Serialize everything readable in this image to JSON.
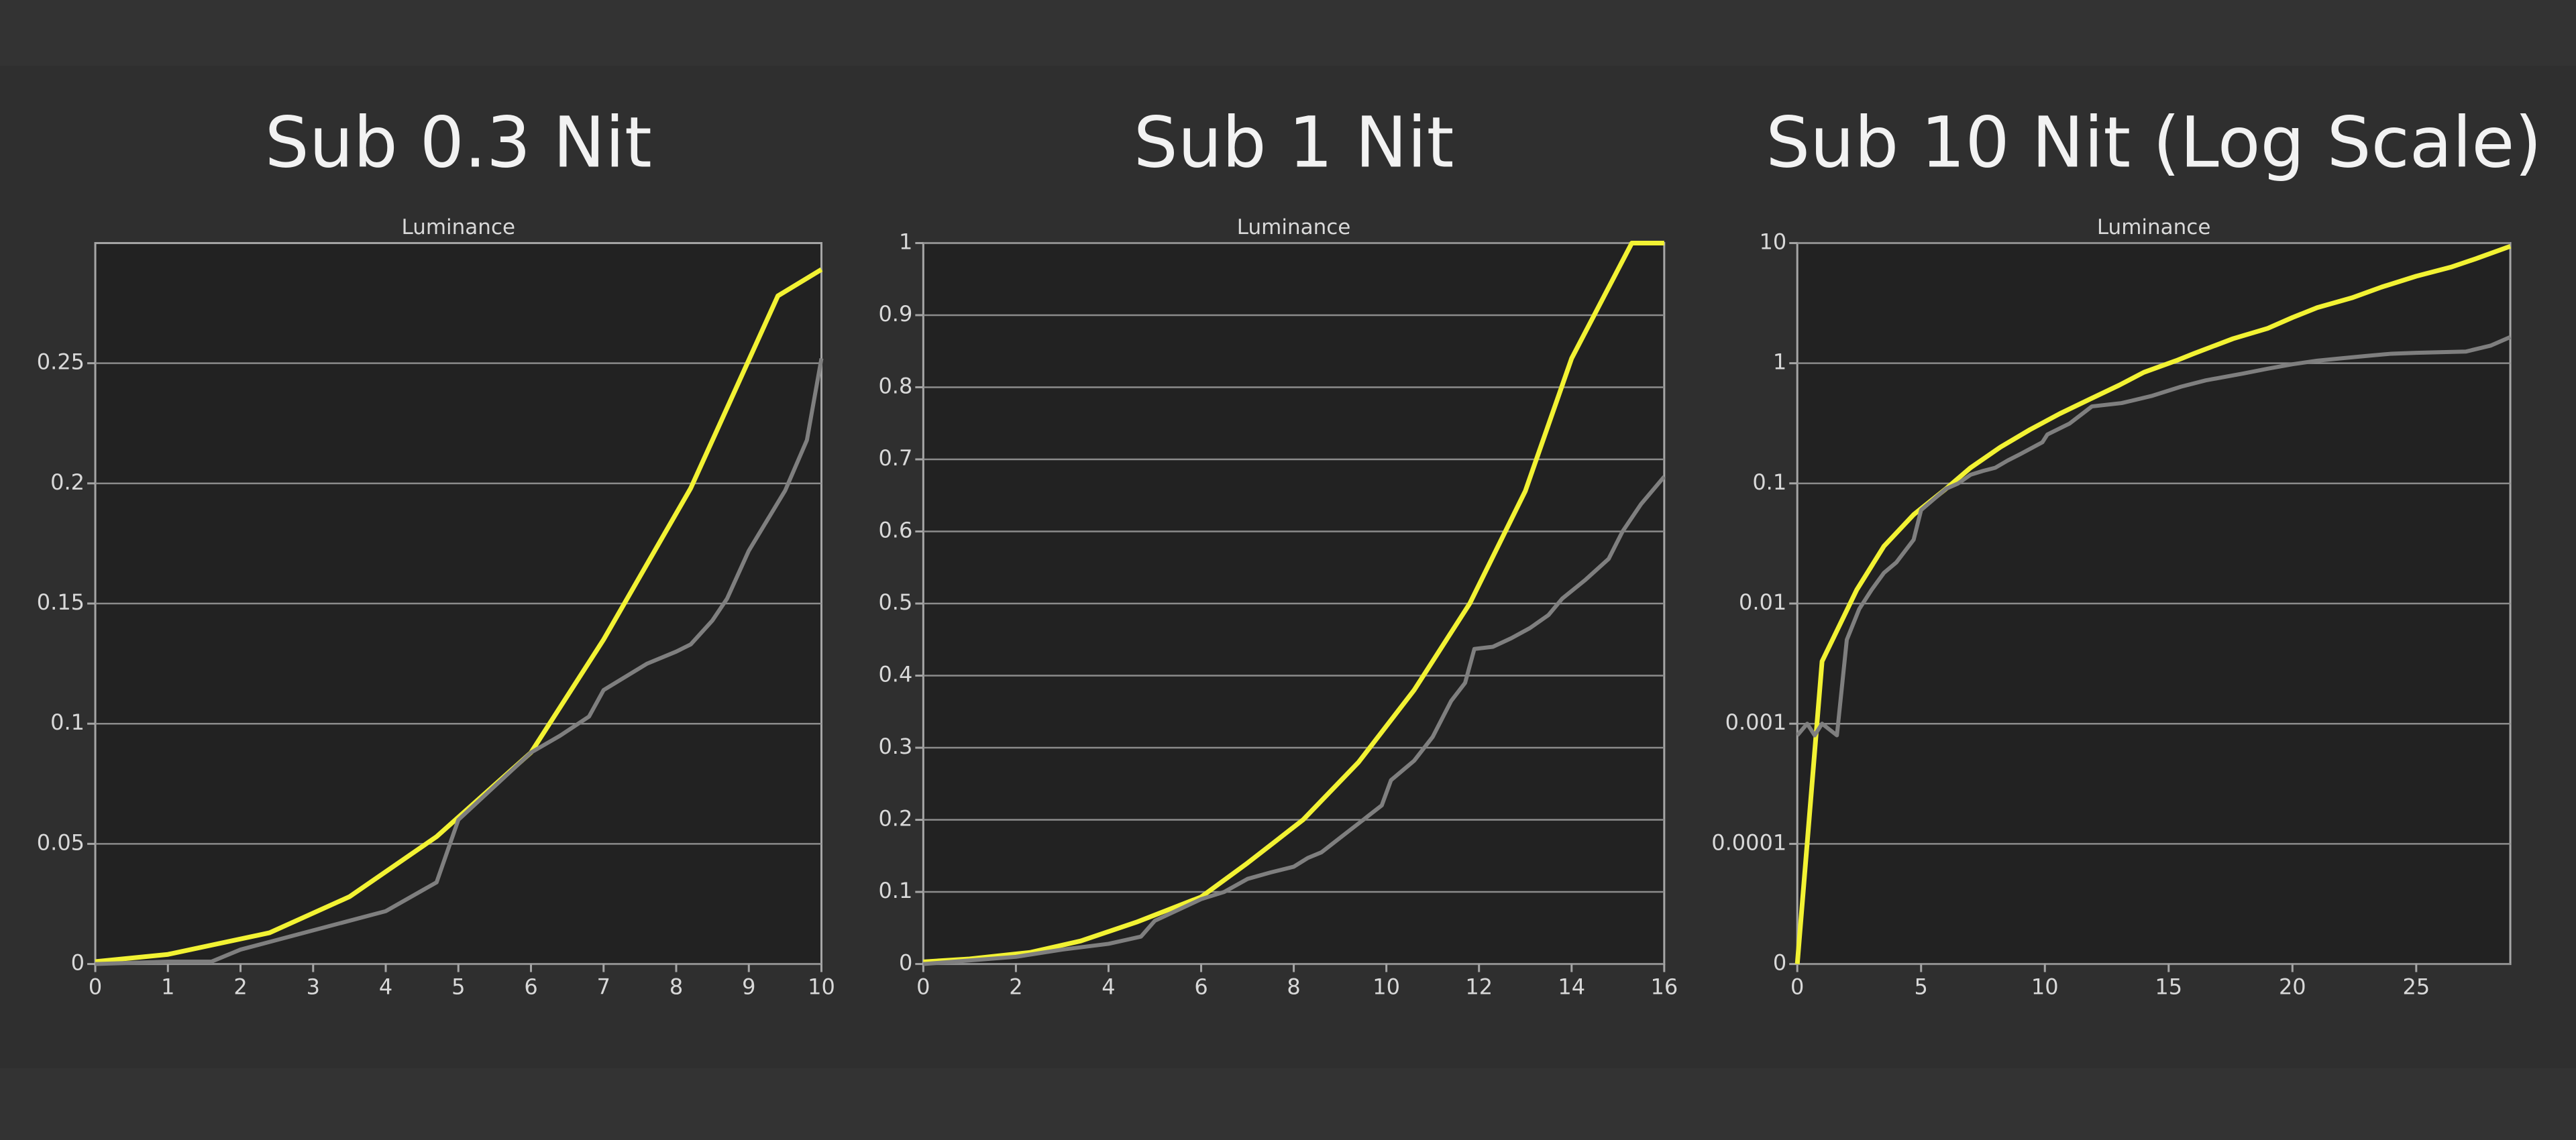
{
  "chart_data": [
    {
      "type": "line",
      "title": "Sub 0.3 Nit",
      "subtitle": "Luminance",
      "xlim": [
        0,
        10
      ],
      "xticks": [
        0,
        1,
        2,
        3,
        4,
        5,
        6,
        7,
        8,
        9,
        10
      ],
      "ylim": [
        0,
        0.3
      ],
      "yticks": [
        0,
        0.05,
        0.1,
        0.15,
        0.2,
        0.25
      ],
      "grid": true,
      "log_scale": false,
      "series": [
        {
          "color": "#f2f233",
          "x": [
            0,
            1,
            2.4,
            3.5,
            4.7,
            6,
            7,
            8.2,
            9.4,
            10
          ],
          "values": [
            0.001,
            0.004,
            0.013,
            0.028,
            0.053,
            0.088,
            0.135,
            0.198,
            0.278,
            0.289
          ]
        },
        {
          "color": "#7f7f7f",
          "x": [
            0,
            1,
            1.6,
            2,
            2.5,
            3,
            3.5,
            4,
            4.7,
            5,
            6,
            6.4,
            6.8,
            7,
            7.6,
            8,
            8.2,
            8.5,
            8.7,
            9,
            9.5,
            9.8,
            10
          ],
          "values": [
            0,
            0.001,
            0.001,
            0.006,
            0.01,
            0.014,
            0.018,
            0.022,
            0.034,
            0.06,
            0.088,
            0.095,
            0.103,
            0.114,
            0.125,
            0.13,
            0.133,
            0.143,
            0.152,
            0.172,
            0.197,
            0.218,
            0.252
          ]
        }
      ]
    },
    {
      "type": "line",
      "title": "Sub 1 Nit",
      "subtitle": "Luminance",
      "xlim": [
        0,
        16
      ],
      "xticks": [
        0,
        2,
        4,
        6,
        8,
        10,
        12,
        14,
        16
      ],
      "ylim": [
        0,
        1
      ],
      "yticks": [
        0,
        0.1,
        0.2,
        0.3,
        0.4,
        0.5,
        0.6,
        0.7,
        0.8,
        0.9,
        1
      ],
      "grid": true,
      "log_scale": false,
      "series": [
        {
          "color": "#f2f233",
          "x": [
            0,
            1,
            2.3,
            3.4,
            4.6,
            6,
            7,
            8.2,
            9.4,
            10.6,
            11.8,
            13,
            14,
            15.3,
            16
          ],
          "values": [
            0.003,
            0.007,
            0.016,
            0.032,
            0.058,
            0.093,
            0.14,
            0.2,
            0.28,
            0.38,
            0.5,
            0.656,
            0.84,
            1,
            1
          ]
        },
        {
          "color": "#7f7f7f",
          "x": [
            0,
            2,
            3,
            4,
            4.7,
            5,
            6,
            6.5,
            7,
            7.5,
            8,
            8.3,
            8.6,
            9,
            9.6,
            9.9,
            10.1,
            10.6,
            11,
            11.4,
            11.7,
            11.9,
            12.3,
            12.7,
            13.1,
            13.5,
            13.8,
            14.3,
            14.8,
            15.1,
            15.5,
            16
          ],
          "values": [
            0,
            0.01,
            0.02,
            0.028,
            0.038,
            0.06,
            0.09,
            0.1,
            0.118,
            0.127,
            0.135,
            0.147,
            0.155,
            0.175,
            0.205,
            0.22,
            0.255,
            0.282,
            0.315,
            0.365,
            0.39,
            0.437,
            0.44,
            0.452,
            0.466,
            0.484,
            0.507,
            0.533,
            0.562,
            0.6,
            0.638,
            0.676
          ]
        }
      ]
    },
    {
      "type": "line",
      "title": "Sub 10 Nit (Log Scale)",
      "subtitle": "Luminance",
      "xlim": [
        0,
        28.8
      ],
      "xticks": [
        0,
        5,
        10,
        15,
        20,
        25
      ],
      "ylim": [
        1e-05,
        10
      ],
      "yticks": [
        {
          "value": 1e-05,
          "label": "0"
        },
        0.0001,
        0.001,
        0.01,
        0.1,
        1,
        10
      ],
      "grid": true,
      "log_scale": true,
      "series": [
        {
          "color": "#f2f233",
          "x": [
            0,
            1,
            2.4,
            3.5,
            4.7,
            6,
            7,
            8.2,
            9.4,
            10.6,
            11.8,
            13,
            14,
            15.3,
            16,
            17.6,
            19,
            20,
            21,
            22.4,
            23.6,
            25,
            26.4,
            27.4,
            28.8
          ],
          "values": [
            1e-05,
            0.0033,
            0.013,
            0.03,
            0.055,
            0.09,
            0.135,
            0.2,
            0.28,
            0.38,
            0.5,
            0.656,
            0.84,
            1.05,
            1.2,
            1.6,
            1.95,
            2.4,
            2.9,
            3.5,
            4.3,
            5.3,
            6.3,
            7.4,
            9.4
          ]
        },
        {
          "color": "#7f7f7f",
          "x": [
            0,
            0.4,
            0.7,
            1,
            1.6,
            2,
            2.5,
            3,
            3.5,
            4,
            4.7,
            5,
            6,
            6.5,
            7,
            7.5,
            8,
            8.5,
            9,
            9.9,
            10.1,
            11,
            11.9,
            13.1,
            14.3,
            15.5,
            16.5,
            18,
            19,
            20,
            21,
            22,
            23,
            24,
            25,
            27,
            28,
            28.8
          ],
          "values": [
            0.0008,
            0.001,
            0.0008,
            0.001,
            0.0008,
            0.005,
            0.009,
            0.013,
            0.018,
            0.022,
            0.034,
            0.06,
            0.09,
            0.1,
            0.118,
            0.127,
            0.135,
            0.155,
            0.175,
            0.22,
            0.255,
            0.315,
            0.437,
            0.466,
            0.533,
            0.638,
            0.72,
            0.82,
            0.9,
            0.98,
            1.05,
            1.1,
            1.15,
            1.2,
            1.22,
            1.25,
            1.4,
            1.65
          ]
        }
      ]
    }
  ]
}
